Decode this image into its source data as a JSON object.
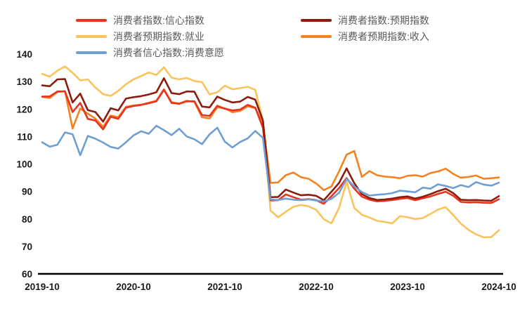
{
  "chart_data": {
    "type": "line",
    "title": "",
    "legend_position": "top",
    "grid": false,
    "axis_color": "#000000",
    "ylim": [
      60,
      140
    ],
    "y_axis": {
      "ticks": [
        60,
        70,
        80,
        90,
        100,
        110,
        120,
        130,
        140
      ]
    },
    "x_axis": {
      "ticks": [
        "2019-10",
        "2020-10",
        "2021-10",
        "2022-10",
        "2023-10",
        "2024-10"
      ],
      "tick_interval_months": 12
    },
    "x": [
      "2019-10",
      "2019-11",
      "2019-12",
      "2020-01",
      "2020-02",
      "2020-03",
      "2020-04",
      "2020-05",
      "2020-06",
      "2020-07",
      "2020-08",
      "2020-09",
      "2020-10",
      "2020-11",
      "2020-12",
      "2021-01",
      "2021-02",
      "2021-03",
      "2021-04",
      "2021-05",
      "2021-06",
      "2021-07",
      "2021-08",
      "2021-09",
      "2021-10",
      "2021-11",
      "2021-12",
      "2022-01",
      "2022-02",
      "2022-03",
      "2022-04",
      "2022-05",
      "2022-06",
      "2022-07",
      "2022-08",
      "2022-09",
      "2022-10",
      "2022-11",
      "2022-12",
      "2023-01",
      "2023-02",
      "2023-03",
      "2023-04",
      "2023-05",
      "2023-06",
      "2023-07",
      "2023-08",
      "2023-09",
      "2023-10",
      "2023-11",
      "2023-12",
      "2024-01",
      "2024-02",
      "2024-03",
      "2024-04",
      "2024-05",
      "2024-06",
      "2024-07",
      "2024-08",
      "2024-09",
      "2024-10"
    ],
    "series": [
      {
        "name": "消费者指数:信心指数",
        "color": "#e8341f",
        "values": [
          124.5,
          124.6,
          126.4,
          126.4,
          118.9,
          122.2,
          116.4,
          115.8,
          112.6,
          117.2,
          116.4,
          120.5,
          121.1,
          121.5,
          122.1,
          122.8,
          127.0,
          122.2,
          121.9,
          122.8,
          122.8,
          117.8,
          117.5,
          121.2,
          120.1,
          119.5,
          119.8,
          121.5,
          120.5,
          113.2,
          86.7,
          86.8,
          88.9,
          87.9,
          87.0,
          87.2,
          86.8,
          85.5,
          88.3,
          91.2,
          94.9,
          91.0,
          88.1,
          87.0,
          86.4,
          86.6,
          86.9,
          87.3,
          87.6,
          86.8,
          87.5,
          88.2,
          89.1,
          89.9,
          88.4,
          86.2,
          86.0,
          86.1,
          85.9,
          85.8,
          87.2
        ]
      },
      {
        "name": "消费者指数:预期指数",
        "color": "#8c1c0e",
        "values": [
          128.6,
          128.3,
          130.8,
          130.9,
          122.4,
          125.6,
          119.6,
          118.9,
          115.4,
          120.3,
          119.5,
          123.8,
          124.3,
          124.7,
          125.3,
          126.1,
          131.2,
          125.8,
          125.4,
          126.4,
          126.3,
          120.9,
          120.6,
          124.5,
          123.3,
          122.4,
          122.7,
          124.4,
          123.4,
          115.8,
          87.9,
          88.0,
          90.7,
          89.6,
          88.6,
          88.8,
          88.4,
          86.8,
          89.9,
          93.1,
          98.4,
          93.0,
          89.0,
          87.6,
          86.9,
          87.1,
          87.4,
          87.9,
          88.2,
          87.4,
          88.1,
          89.0,
          90.1,
          91.0,
          89.4,
          87.0,
          86.8,
          86.9,
          86.7,
          86.6,
          88.3
        ]
      },
      {
        "name": "消费者预期指数:就业",
        "color": "#fbc35a",
        "values": [
          132.8,
          131.8,
          134.0,
          135.5,
          133.2,
          130.4,
          130.8,
          127.8,
          125.4,
          124.8,
          126.6,
          129.0,
          130.8,
          132.0,
          133.3,
          132.4,
          135.2,
          131.4,
          130.8,
          131.3,
          130.2,
          129.8,
          125.3,
          126.1,
          128.5,
          127.2,
          127.6,
          128.1,
          127.0,
          115.8,
          83.0,
          80.6,
          82.6,
          84.4,
          85.1,
          84.6,
          83.3,
          79.9,
          78.4,
          84.0,
          93.5,
          84.0,
          81.5,
          80.5,
          79.3,
          78.9,
          78.4,
          81.0,
          80.6,
          80.0,
          80.3,
          81.8,
          83.4,
          84.3,
          81.4,
          78.3,
          76.0,
          74.4,
          73.3,
          73.4,
          75.9
        ]
      },
      {
        "name": "消费者预期指数:收入",
        "color": "#f5821f",
        "values": [
          124.4,
          124.0,
          126.2,
          126.5,
          112.9,
          120.2,
          118.3,
          116.5,
          113.5,
          117.6,
          117.0,
          120.8,
          121.3,
          121.6,
          122.3,
          123.0,
          127.2,
          122.5,
          122.0,
          123.0,
          122.6,
          117.0,
          116.6,
          120.6,
          120.3,
          118.8,
          119.3,
          121.0,
          120.3,
          114.8,
          93.1,
          93.3,
          95.9,
          96.9,
          95.2,
          94.6,
          92.9,
          90.5,
          91.8,
          97.3,
          103.4,
          104.7,
          95.3,
          97.4,
          95.9,
          95.4,
          95.2,
          94.8,
          95.7,
          95.9,
          95.4,
          96.7,
          97.3,
          98.3,
          96.4,
          95.0,
          95.3,
          95.8,
          94.6,
          94.8,
          95.1
        ]
      },
      {
        "name": "消费者信心指数:消费意愿",
        "color": "#6e9ed4",
        "values": [
          107.9,
          106.3,
          107.0,
          111.5,
          110.8,
          103.2,
          110.2,
          109.2,
          107.8,
          106.2,
          105.6,
          107.9,
          110.4,
          111.9,
          111.0,
          113.9,
          112.3,
          110.5,
          112.8,
          110.0,
          109.0,
          107.2,
          110.8,
          113.2,
          108.1,
          106.0,
          108.0,
          109.3,
          112.0,
          109.5,
          87.1,
          86.9,
          87.4,
          87.0,
          86.8,
          87.1,
          86.7,
          86.4,
          87.3,
          89.5,
          94.6,
          91.8,
          89.8,
          88.5,
          88.8,
          89.0,
          89.4,
          90.3,
          90.0,
          89.7,
          91.4,
          91.0,
          92.6,
          92.0,
          91.2,
          92.3,
          91.6,
          93.4,
          92.5,
          92.1,
          93.2
        ]
      }
    ]
  }
}
